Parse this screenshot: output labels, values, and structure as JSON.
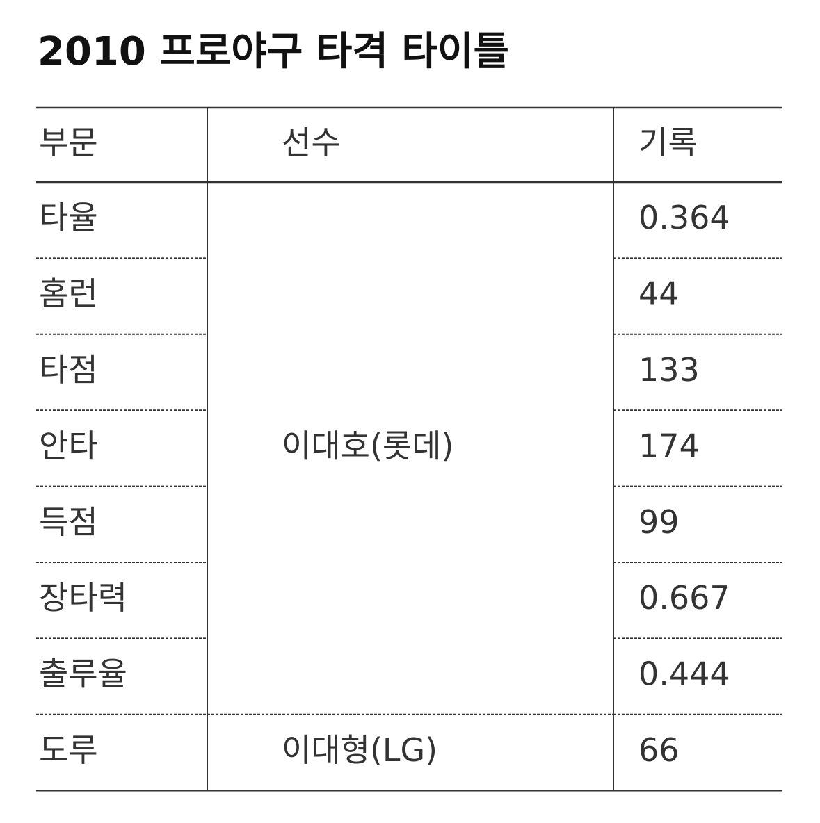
{
  "title": "2010 프로야구 타격 타이틀",
  "table": {
    "header": [
      "부문",
      "선수",
      "기록"
    ],
    "rows": [
      {
        "category": "타율",
        "player": "이대호(롯데)",
        "record": "0.364"
      },
      {
        "category": "홈런",
        "record": "44"
      },
      {
        "category": "타점",
        "record": "133"
      },
      {
        "category": "안타",
        "record": "174"
      },
      {
        "category": "득점",
        "record": "99"
      },
      {
        "category": "장타력",
        "record": "0.667"
      },
      {
        "category": "출루율",
        "record": "0.444"
      },
      {
        "category": "도루",
        "player": "이대형(LG)",
        "record": "66"
      }
    ]
  }
}
